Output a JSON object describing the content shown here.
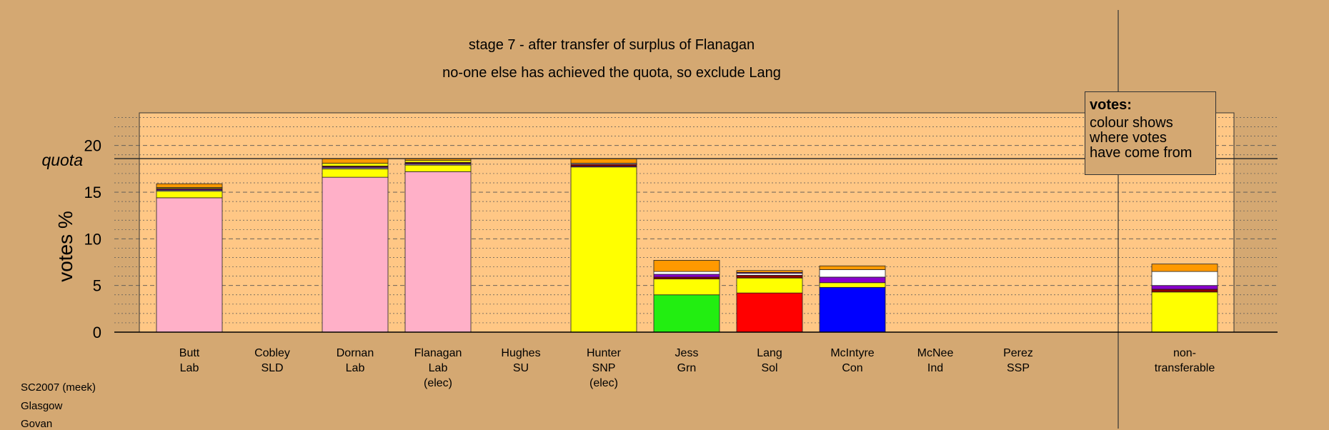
{
  "chart_data": {
    "type": "bar",
    "stacked": true,
    "title": "stage 7 - after transfer of surplus of Flanagan",
    "subtitle": "no-one else has achieved the quota, so exclude Lang",
    "ylabel": "votes %",
    "ylim": [
      0,
      23.5
    ],
    "yticks": [
      0,
      5,
      10,
      15,
      20
    ],
    "quota_label": "quota",
    "quota": 18.6,
    "grid": "dashed at major ticks, dotted at minor",
    "legend_position": "top-right",
    "legend_title": "votes:",
    "legend_lines": [
      "colour shows",
      "where votes",
      "have come from"
    ],
    "categories": [
      {
        "name": "Butt",
        "party": "Lab",
        "note": ""
      },
      {
        "name": "Cobley",
        "party": "SLD",
        "note": ""
      },
      {
        "name": "Dornan",
        "party": "Lab",
        "note": ""
      },
      {
        "name": "Flanagan",
        "party": "Lab",
        "note": "(elec)"
      },
      {
        "name": "Hughes",
        "party": "SU",
        "note": ""
      },
      {
        "name": "Hunter",
        "party": "SNP",
        "note": "(elec)"
      },
      {
        "name": "Jess",
        "party": "Grn",
        "note": ""
      },
      {
        "name": "Lang",
        "party": "Sol",
        "note": ""
      },
      {
        "name": "McIntyre",
        "party": "Con",
        "note": ""
      },
      {
        "name": "McNee",
        "party": "Ind",
        "note": ""
      },
      {
        "name": "Perez",
        "party": "SSP",
        "note": ""
      },
      {
        "name": "non-",
        "party": "transferable",
        "note": ""
      }
    ],
    "source_colors": {
      "Lab": "#ffb0c8",
      "SNP": "#ffff00",
      "Grn": "#22ee11",
      "Sol": "#ff0000",
      "Con": "#0000ff",
      "SSP": "#8b0000",
      "SU": "#8800cc",
      "SLD": "#ff9900",
      "Ind": "#ffffff",
      "purple": "#8800cc"
    },
    "bars": [
      {
        "segments": [
          {
            "color": "#ffb0c8",
            "value": 14.4
          },
          {
            "color": "#ffff00",
            "value": 0.7
          },
          {
            "color": "#ffffff",
            "value": 0.1
          },
          {
            "color": "#8800cc",
            "value": 0.1
          },
          {
            "color": "#8b0000",
            "value": 0.1
          },
          {
            "color": "#ffff00",
            "value": 0.1
          },
          {
            "color": "#ff9900",
            "value": 0.4
          }
        ]
      },
      {
        "segments": []
      },
      {
        "segments": [
          {
            "color": "#ffb0c8",
            "value": 16.6
          },
          {
            "color": "#ffff00",
            "value": 0.9
          },
          {
            "color": "#ffffff",
            "value": 0.1
          },
          {
            "color": "#8800cc",
            "value": 0.1
          },
          {
            "color": "#8b0000",
            "value": 0.1
          },
          {
            "color": "#ffff00",
            "value": 0.3
          },
          {
            "color": "#ff9900",
            "value": 0.5
          }
        ]
      },
      {
        "segments": [
          {
            "color": "#ffb0c8",
            "value": 17.2
          },
          {
            "color": "#ffff00",
            "value": 0.7
          },
          {
            "color": "#ffffff",
            "value": 0.1
          },
          {
            "color": "#8800cc",
            "value": 0.1
          },
          {
            "color": "#8b0000",
            "value": 0.1
          },
          {
            "color": "#ffff00",
            "value": 0.2
          },
          {
            "color": "#ff9900",
            "value": 0.2
          }
        ]
      },
      {
        "segments": []
      },
      {
        "segments": [
          {
            "color": "#ffff00",
            "value": 17.7
          },
          {
            "color": "#8800cc",
            "value": 0.1
          },
          {
            "color": "#8b0000",
            "value": 0.2
          },
          {
            "color": "#ffffff",
            "value": 0.1
          },
          {
            "color": "#ff9900",
            "value": 0.5
          }
        ]
      },
      {
        "segments": [
          {
            "color": "#22ee11",
            "value": 4.0
          },
          {
            "color": "#ffff00",
            "value": 1.7
          },
          {
            "color": "#8b0000",
            "value": 0.2
          },
          {
            "color": "#8800cc",
            "value": 0.3
          },
          {
            "color": "#ffffff",
            "value": 0.3
          },
          {
            "color": "#ff9900",
            "value": 1.2
          }
        ]
      },
      {
        "segments": [
          {
            "color": "#ff0000",
            "value": 4.2
          },
          {
            "color": "#ffff00",
            "value": 1.6
          },
          {
            "color": "#8b0000",
            "value": 0.3
          },
          {
            "color": "#ffffff",
            "value": 0.2
          },
          {
            "color": "#8800cc",
            "value": 0.1
          },
          {
            "color": "#ff9900",
            "value": 0.2
          }
        ]
      },
      {
        "segments": [
          {
            "color": "#0000ff",
            "value": 4.8
          },
          {
            "color": "#ffff00",
            "value": 0.5
          },
          {
            "color": "#8800cc",
            "value": 0.6
          },
          {
            "color": "#ffffff",
            "value": 0.8
          },
          {
            "color": "#ff9900",
            "value": 0.4
          }
        ]
      },
      {
        "segments": []
      },
      {
        "segments": []
      },
      {
        "segments": [
          {
            "color": "#ffff00",
            "value": 4.3
          },
          {
            "color": "#8b0000",
            "value": 0.3
          },
          {
            "color": "#8800cc",
            "value": 0.4
          },
          {
            "color": "#ffffff",
            "value": 1.5
          },
          {
            "color": "#ff9900",
            "value": 0.8
          }
        ]
      }
    ]
  },
  "footer": {
    "line1": "SC2007 (meek)",
    "line2": "Glasgow",
    "line3": "Govan"
  }
}
